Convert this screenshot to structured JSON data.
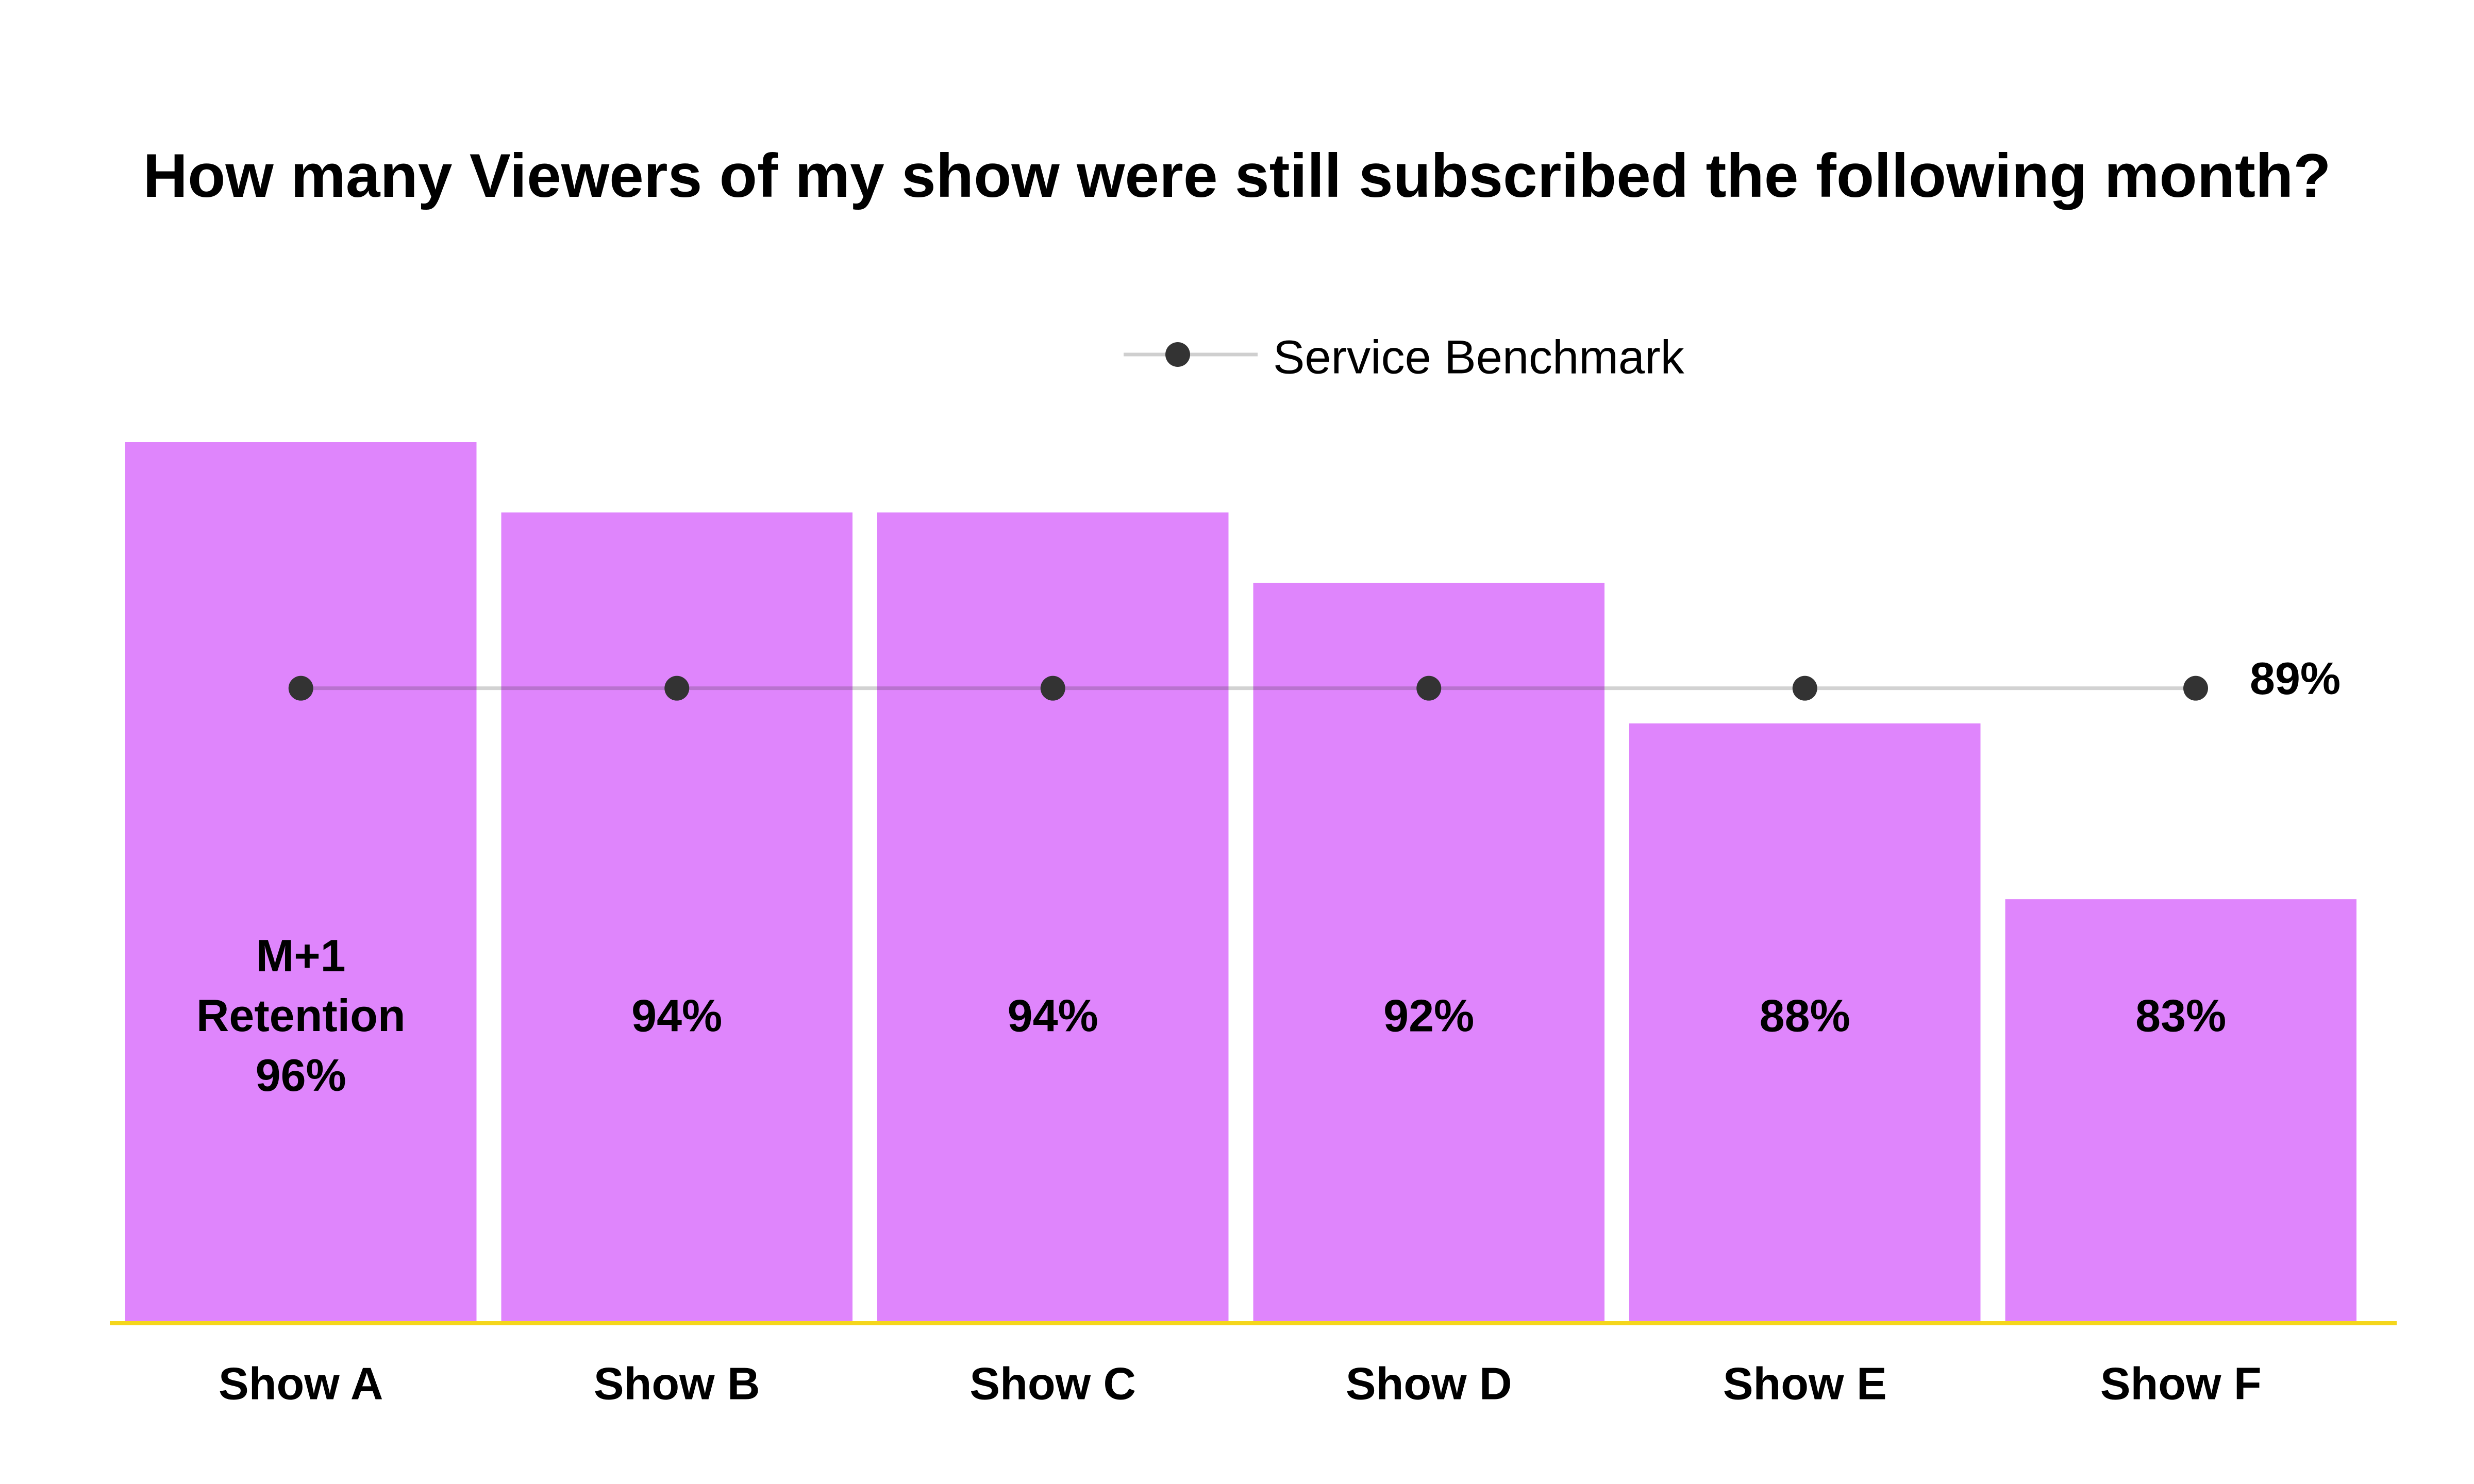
{
  "chart_data": {
    "type": "bar",
    "title": "How many Viewers of my show were still subscribed the following month?",
    "categories": [
      "Show A",
      "Show B",
      "Show C",
      "Show D",
      "Show E",
      "Show F"
    ],
    "series": [
      {
        "name": "M+1 Retention",
        "values": [
          96,
          94,
          94,
          92,
          88,
          83
        ],
        "value_labels": [
          "96%",
          "94%",
          "94%",
          "92%",
          "88%",
          "83%"
        ]
      },
      {
        "name": "Service Benchmark",
        "type": "line",
        "values": [
          89,
          89,
          89,
          89,
          89,
          89
        ],
        "end_label": "89%"
      }
    ],
    "bar_series_label_lines": [
      "M+1",
      "Retention"
    ],
    "legend": {
      "label": "Service Benchmark",
      "position": "top-center"
    },
    "ylim": [
      71,
      96
    ],
    "xlabel": "",
    "ylabel": "",
    "grid": false,
    "colors": {
      "bar": "#DF85FC",
      "benchmark_line": "#CFCFCF",
      "benchmark_marker": "#333333",
      "baseline": "#F5D61C",
      "text": "#000000"
    }
  }
}
